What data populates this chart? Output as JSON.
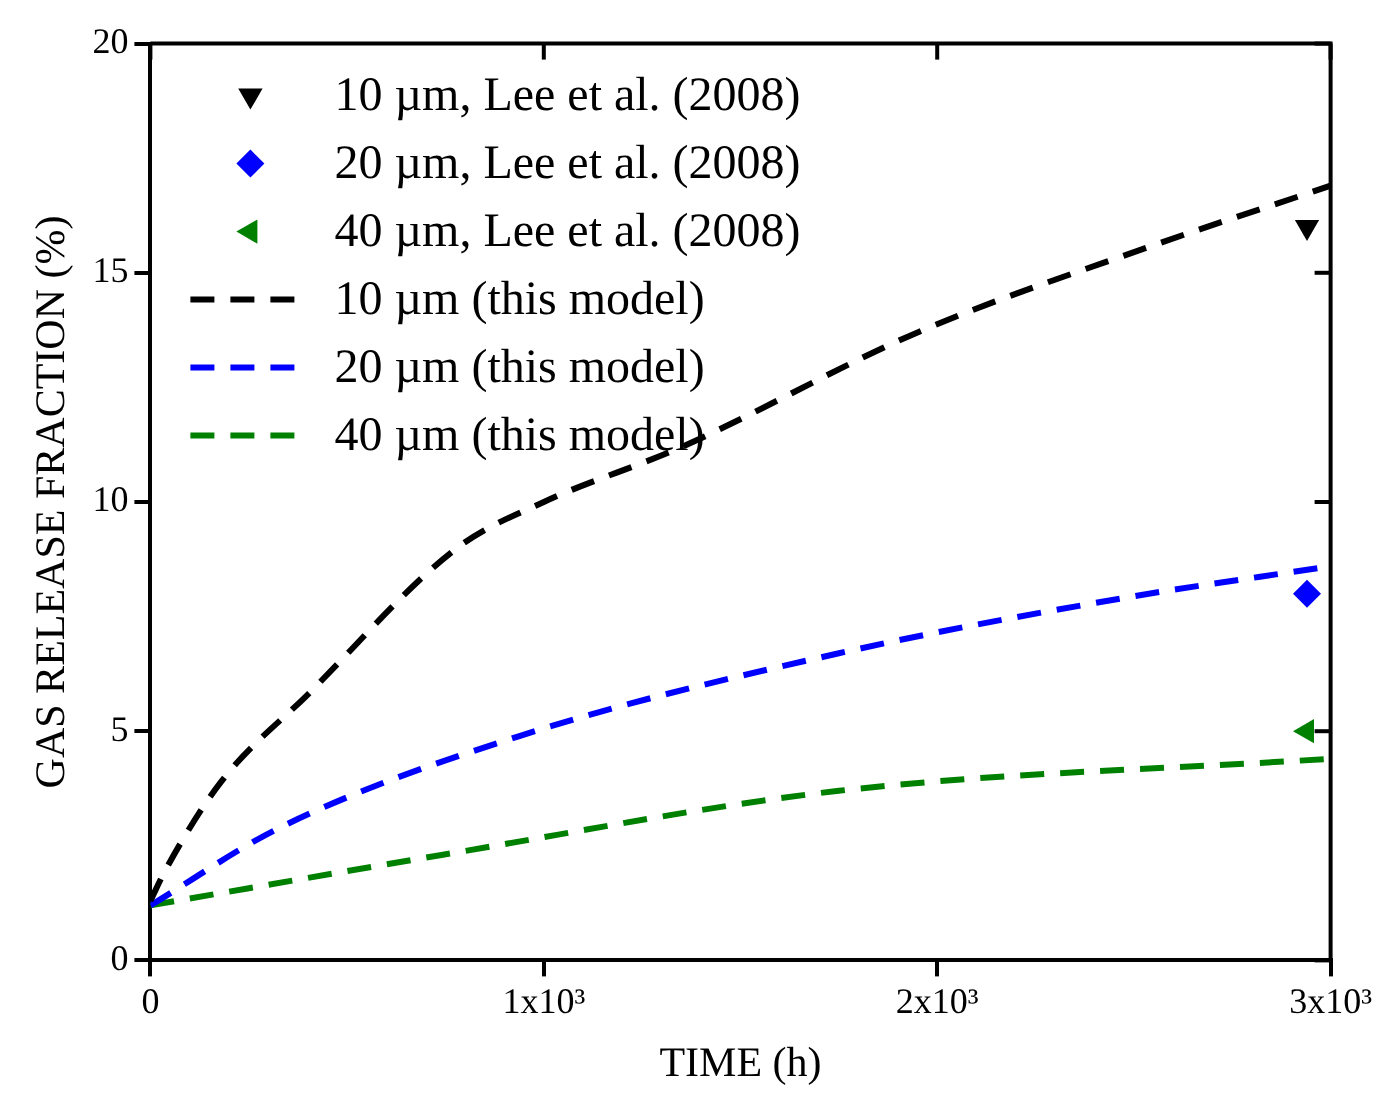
{
  "chart_data": {
    "type": "line",
    "xlabel": "TIME (h)",
    "ylabel": "GAS RELEASE FRACTION (%)",
    "xlim": [
      0,
      3000
    ],
    "ylim": [
      0,
      20
    ],
    "xticks": [
      0,
      {
        "value": 1000,
        "label": "1x10³"
      },
      {
        "value": 2000,
        "label": "2x10³"
      },
      {
        "value": 3000,
        "label": "3x10³"
      }
    ],
    "yticks": [
      0,
      5,
      10,
      15,
      20
    ],
    "grid": false,
    "legend": "top left",
    "series": [
      {
        "name": "10 µm, Lee et al. (2008)",
        "type": "scatter",
        "marker": "triangle-down",
        "color": "#000000",
        "x": [
          2940
        ],
        "values": [
          16.0
        ]
      },
      {
        "name": "20 µm, Lee et al. (2008)",
        "type": "scatter",
        "marker": "diamond",
        "color": "#0000ff",
        "x": [
          2940
        ],
        "values": [
          8.0
        ]
      },
      {
        "name": "40 µm, Lee et al. (2008)",
        "type": "scatter",
        "marker": "triangle-left",
        "color": "#008000",
        "x": [
          2940
        ],
        "values": [
          5.0
        ]
      },
      {
        "name": "10 µm (this model)",
        "type": "line",
        "line_style": "dashed",
        "marker": "none",
        "color": "#000000",
        "x": [
          0,
          40,
          180,
          400,
          780,
          1000,
          1350,
          1950,
          2550,
          3000
        ],
        "values": [
          1.3,
          2.0,
          3.9,
          5.8,
          9.0,
          10.0,
          11.2,
          13.7,
          15.6,
          16.9
        ]
      },
      {
        "name": "20 µm (this model)",
        "type": "line",
        "line_style": "dashed",
        "marker": "none",
        "color": "#0000ff",
        "x": [
          0,
          330,
          940,
          1750,
          2470,
          3000
        ],
        "values": [
          1.2,
          2.9,
          4.9,
          6.7,
          7.9,
          8.6
        ]
      },
      {
        "name": "40 µm (this model)",
        "type": "line",
        "line_style": "dashed",
        "marker": "none",
        "color": "#008000",
        "x": [
          0,
          740,
          1750,
          3000
        ],
        "values": [
          1.2,
          2.3,
          3.7,
          4.4
        ]
      }
    ]
  }
}
